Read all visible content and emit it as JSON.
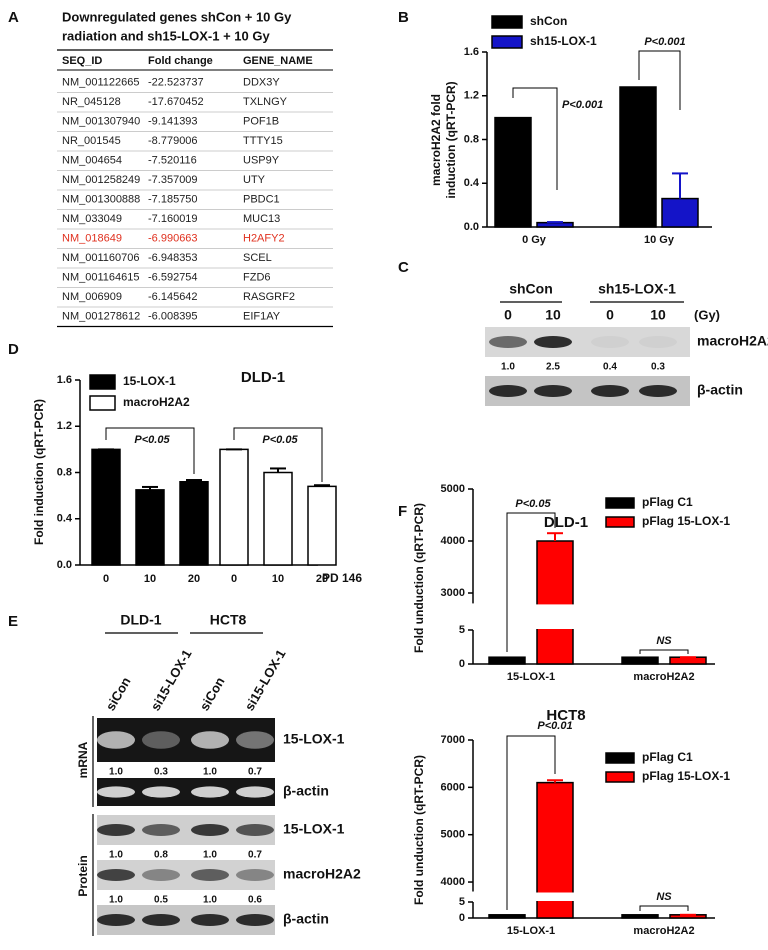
{
  "panel_labels": [
    "A",
    "B",
    "C",
    "D",
    "E",
    "F"
  ],
  "table": {
    "title": [
      "Downregulated genes shCon + 10 Gy",
      "radiation and sh15-LOX-1 + 10 Gy"
    ],
    "columns": [
      "SEQ_ID",
      "Fold change",
      "GENE_NAME"
    ],
    "rows": [
      [
        "NM_001122665",
        "-22.523737",
        "DDX3Y"
      ],
      [
        "NR_045128",
        "-17.670452",
        "TXLNGY"
      ],
      [
        "NM_001307940",
        "-9.141393",
        "POF1B"
      ],
      [
        "NR_001545",
        "-8.779006",
        "TTTY15"
      ],
      [
        "NM_004654",
        "-7.520116",
        "USP9Y"
      ],
      [
        "NM_001258249",
        "-7.357009",
        "UTY"
      ],
      [
        "NM_001300888",
        "-7.185750",
        "PBDC1"
      ],
      [
        "NM_033049",
        "-7.160019",
        "MUC13"
      ],
      [
        "NM_018649",
        "-6.990663",
        "H2AFY2"
      ],
      [
        "NM_001160706",
        "-6.948353",
        "SCEL"
      ],
      [
        "NM_001164615",
        "-6.592754",
        "FZD6"
      ],
      [
        "NM_006909",
        "-6.145642",
        "RASGRF2"
      ],
      [
        "NM_001278612",
        "-6.008395",
        "EIF1AY"
      ]
    ],
    "highlight_row": 8,
    "highlight_color": "#e0301e"
  },
  "chart_data": [
    {
      "type": "bar",
      "categories": [
        "0 Gy",
        "10 Gy"
      ],
      "series": [
        {
          "name": "shCon",
          "color": "#000000",
          "values": [
            1,
            1.28
          ]
        },
        {
          "name": "sh15-LOX-1",
          "color": "#1414c8",
          "values": [
            0.04,
            0.26
          ],
          "errors": [
            0.005,
            0.23
          ]
        }
      ],
      "ylabel": [
        "macroH2A2 fold",
        "induction (qRT-PCR)"
      ],
      "ylim": [
        0,
        1.6
      ],
      "yticks": [
        {
          "value": 0,
          "label": "0.0"
        },
        0.4,
        0.8,
        1.2,
        1.6
      ],
      "annotations": [
        "P<0.001",
        "P<0.001"
      ]
    },
    {
      "type": "bar",
      "title": "DLD-1",
      "categories": [
        "0",
        "10",
        "20"
      ],
      "xlabel": "PD 146",
      "series": [
        {
          "name": "15-LOX-1",
          "color": "#000000",
          "values": [
            1,
            0.65,
            0.72
          ],
          "errors": [
            0,
            0.025,
            0.015
          ]
        },
        {
          "name": "macroH2A2",
          "color": "#ffffff",
          "values": [
            1,
            0.8,
            0.68
          ],
          "errors": [
            0,
            0.035,
            0.01
          ]
        }
      ],
      "ylabel": "Fold induction (qRT-PCR)",
      "ylim": [
        0,
        1.6
      ],
      "yticks": [
        {
          "value": 0,
          "label": "0.0"
        },
        0.4,
        0.8,
        1.2,
        1.6
      ],
      "annotations": [
        "P<0.05",
        "P<0.05"
      ]
    },
    {
      "type": "bar",
      "title": "DLD-1",
      "categories": [
        "15-LOX-1",
        "macroH2A2"
      ],
      "series": [
        {
          "name": "pFlag C1",
          "color": "#000000",
          "values": [
            1,
            1
          ]
        },
        {
          "name": "pFlag 15-LOX-1",
          "color": "#ff0000",
          "values": [
            4000,
            1
          ],
          "errors": [
            150,
            0
          ]
        }
      ],
      "ylabel": "Fold unduction (qRT-PCR)",
      "ylim": [
        0,
        5000
      ],
      "y_break": [
        5,
        2800
      ],
      "yticks": [
        0,
        5,
        3000,
        4000,
        5000
      ],
      "annotations": [
        "P<0.05",
        "NS"
      ]
    },
    {
      "type": "bar",
      "title": "HCT8",
      "categories": [
        "15-LOX-1",
        "macroH2A2"
      ],
      "series": [
        {
          "name": "pFlag C1",
          "color": "#000000",
          "values": [
            1,
            1
          ]
        },
        {
          "name": "pFlag 15-LOX-1",
          "color": "#ff0000",
          "values": [
            6100,
            1
          ],
          "errors": [
            50,
            0
          ]
        }
      ],
      "ylabel": "Fold unduction (qRT-PCR)",
      "ylim": [
        0,
        7000
      ],
      "y_break": [
        5,
        3800
      ],
      "yticks": [
        0,
        5,
        4000,
        5000,
        6000,
        7000
      ],
      "annotations": [
        "P<0.01",
        "NS"
      ]
    }
  ],
  "blot_c": {
    "groups": [
      "shCon",
      "sh15-LOX-1"
    ],
    "lanes": [
      "0",
      "10",
      "0",
      "10"
    ],
    "unit": "(Gy)",
    "rows": [
      {
        "label": "macroH2A2",
        "quant": [
          "1.0",
          "2.5",
          "0.4",
          "0.3"
        ]
      },
      {
        "label": "β-actin"
      }
    ]
  },
  "blot_e": {
    "cell_lines": [
      "DLD-1",
      "HCT8"
    ],
    "lanes": [
      "siCon",
      "si15-LOX-1",
      "siCon",
      "si15-LOX-1"
    ],
    "sections": [
      {
        "label": "mRNA",
        "rows": [
          {
            "label": "15-LOX-1",
            "quant": [
              "1.0",
              "0.3",
              "1.0",
              "0.7"
            ]
          },
          {
            "label": "β-actin"
          }
        ]
      },
      {
        "label": "Protein",
        "rows": [
          {
            "label": "15-LOX-1",
            "quant": [
              "1.0",
              "0.8",
              "1.0",
              "0.7"
            ]
          },
          {
            "label": "macroH2A2",
            "quant": [
              "1.0",
              "0.5",
              "1.0",
              "0.6"
            ]
          },
          {
            "label": "β-actin"
          }
        ]
      }
    ]
  }
}
